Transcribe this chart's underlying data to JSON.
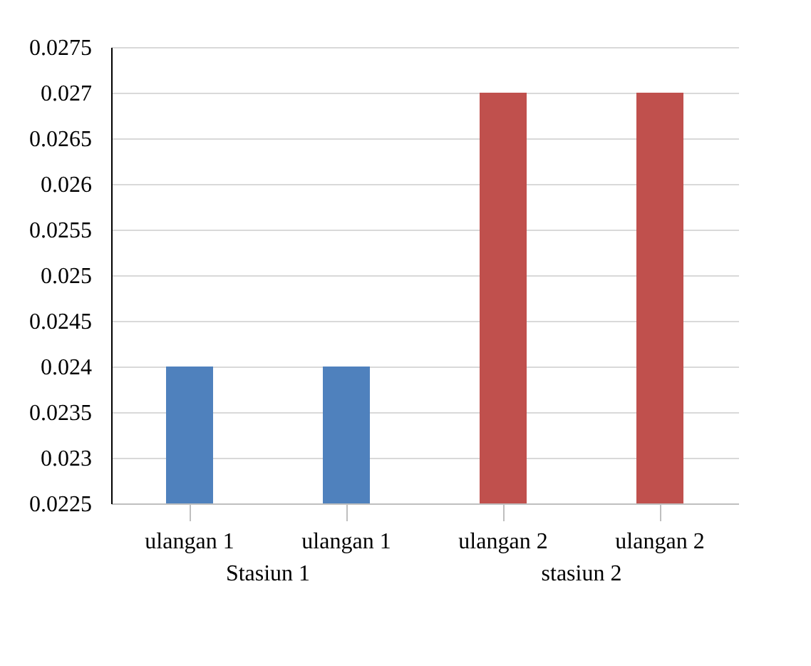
{
  "chart_data": {
    "type": "bar",
    "categories": [
      "ulangan 1",
      "ulangan 1",
      "ulangan 2",
      "ulangan 2"
    ],
    "values": [
      0.024,
      0.024,
      0.027,
      0.027
    ],
    "colors": [
      "#4f81bd",
      "#4f81bd",
      "#c0504d",
      "#c0504d"
    ],
    "ylim": [
      0.0225,
      0.0275
    ],
    "yticks": [
      0.0225,
      0.023,
      0.0235,
      0.024,
      0.0245,
      0.025,
      0.0255,
      0.026,
      0.0265,
      0.027,
      0.0275
    ],
    "grid": "y",
    "annotations": [
      "Stasiun 1",
      "stasiun 2"
    ]
  }
}
